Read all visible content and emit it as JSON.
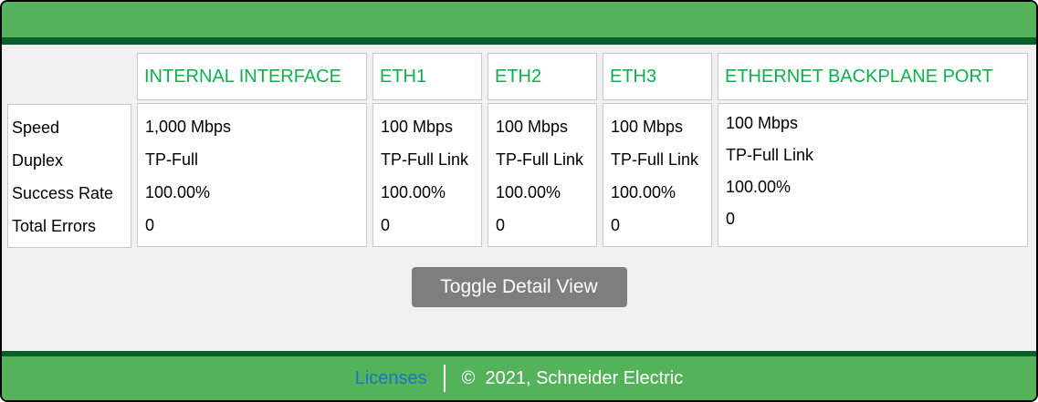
{
  "colors": {
    "banner_green": "#54b25a",
    "dark_green": "#045f28",
    "header_text_green": "#0db04d",
    "content_bg": "#f0f0f0",
    "box_border": "#c8c8c8",
    "button_gray": "#7e7e7e",
    "link_blue": "#1a74c9"
  },
  "table": {
    "row_labels": [
      "Speed",
      "Duplex",
      "Success Rate",
      "Total Errors"
    ],
    "columns": [
      {
        "label": "INTERNAL INTERFACE",
        "values": [
          "1,000 Mbps",
          "TP-Full",
          "100.00%",
          "0"
        ]
      },
      {
        "label": "ETH1",
        "values": [
          "100 Mbps",
          "TP-Full Link",
          "100.00%",
          "0"
        ]
      },
      {
        "label": "ETH2",
        "values": [
          "100 Mbps",
          "TP-Full Link",
          "100.00%",
          "0"
        ]
      },
      {
        "label": "ETH3",
        "values": [
          "100 Mbps",
          "TP-Full Link",
          "100.00%",
          "0"
        ]
      },
      {
        "label": "ETHERNET BACKPLANE PORT",
        "values": [
          "100 Mbps",
          "TP-Full Link",
          "100.00%",
          "0"
        ]
      }
    ]
  },
  "toggle_button": {
    "label": "Toggle Detail View"
  },
  "footer": {
    "licenses_label": "Licenses",
    "copyright": "©  2021, Schneider Electric"
  }
}
